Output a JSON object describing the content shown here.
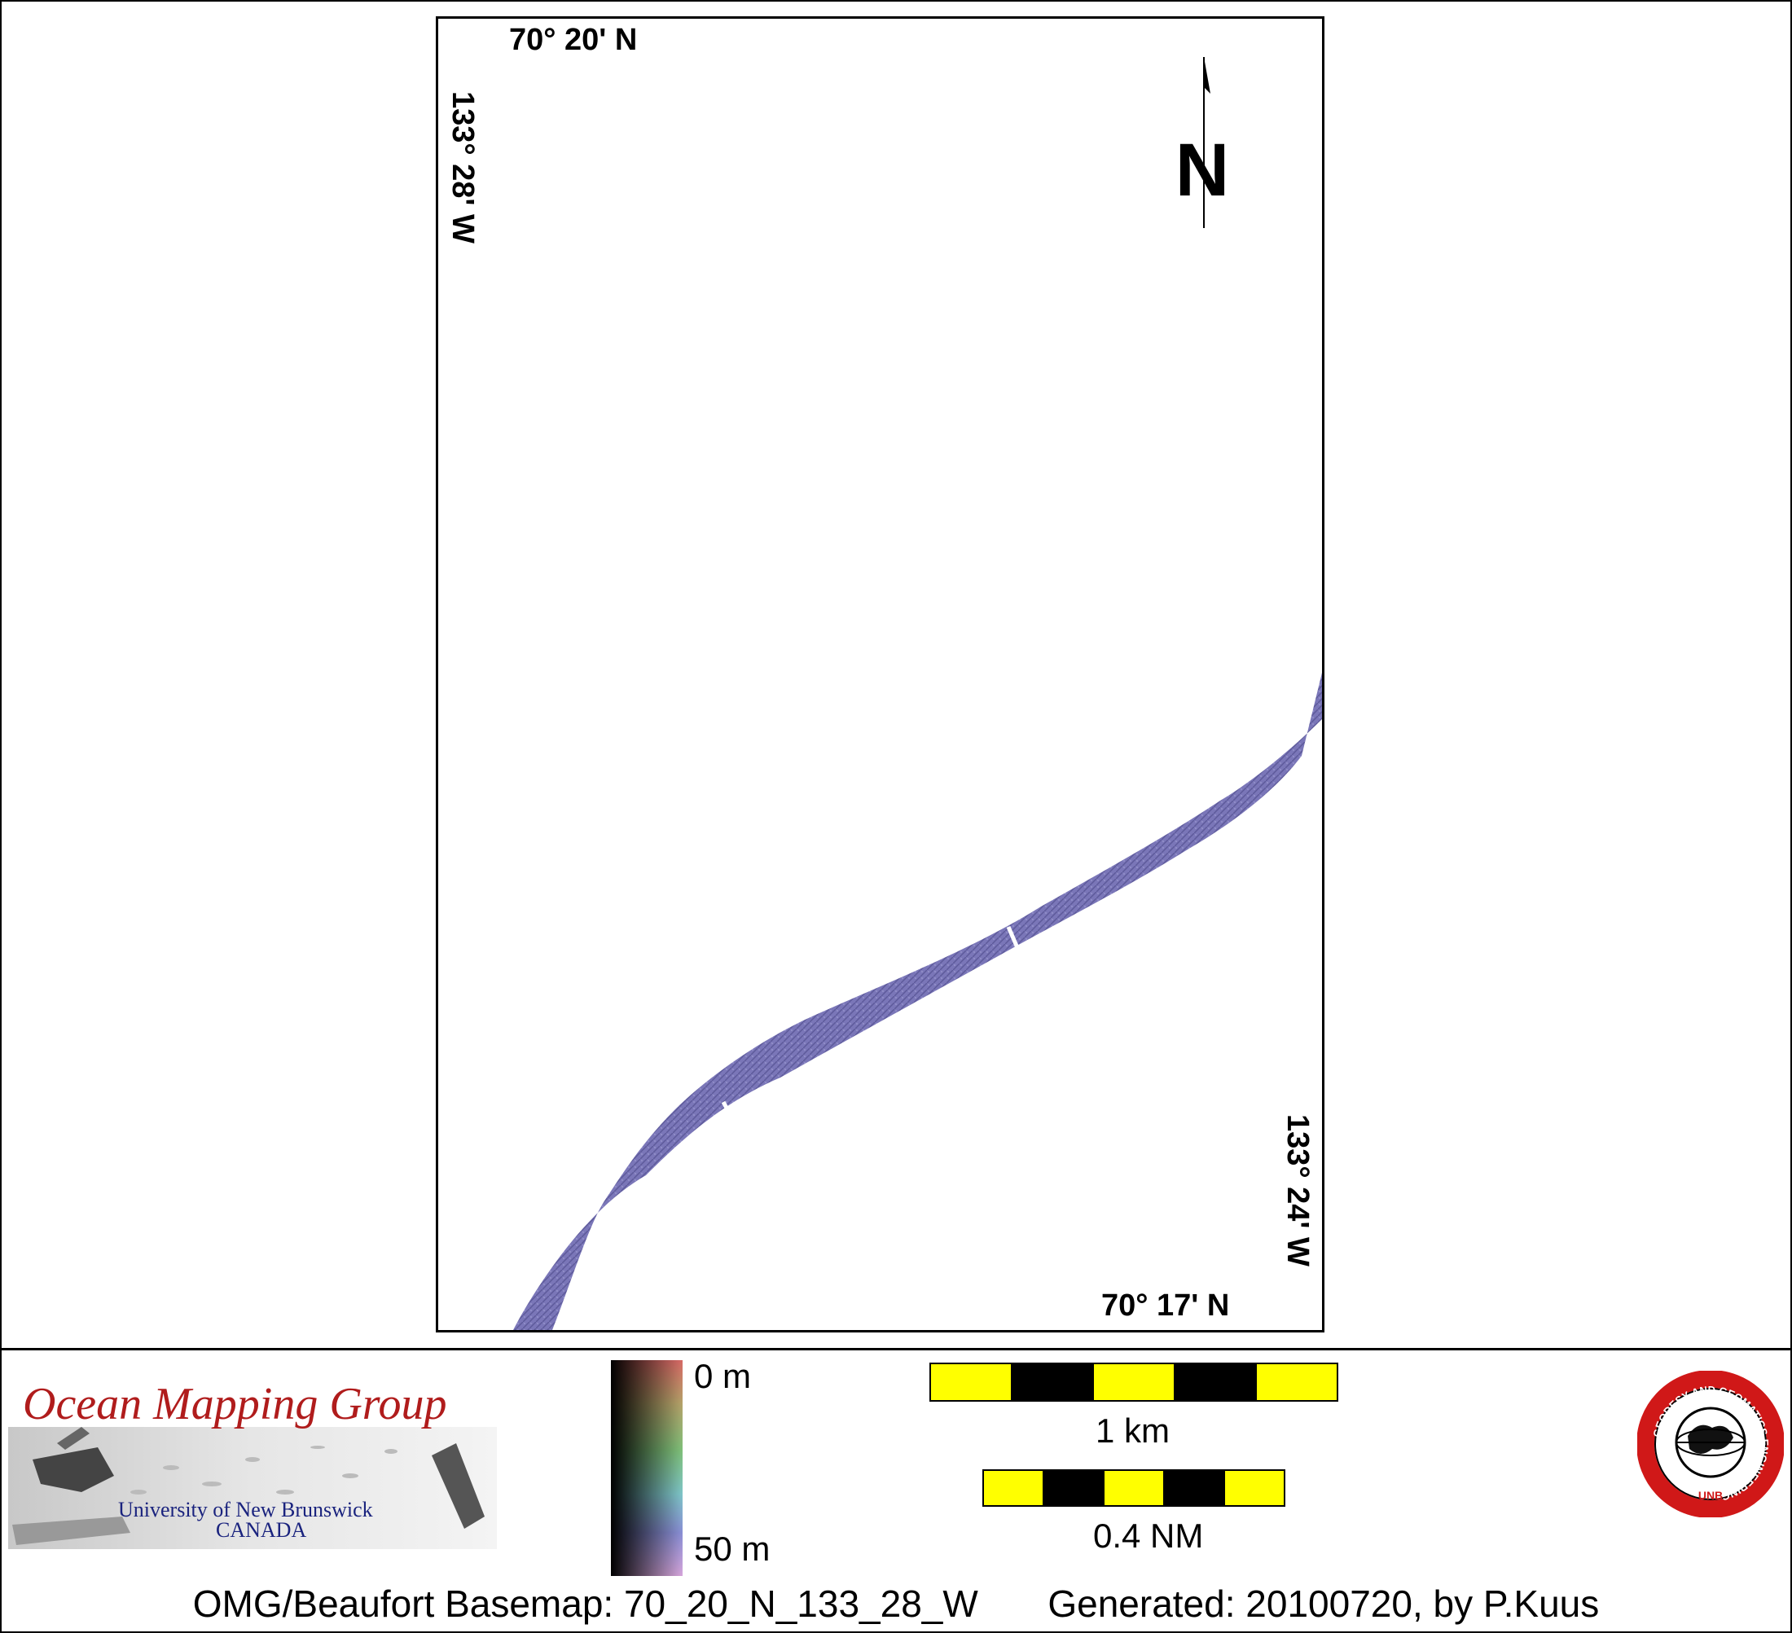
{
  "map": {
    "lat_top": "70° 20' N",
    "lat_bottom": "70° 17' N",
    "lon_left": "133° 28' W",
    "lon_right": "133° 24' W",
    "north_label": "N",
    "swath_color": "#7a76b8"
  },
  "legend": {
    "depth_top": "0 m",
    "depth_bottom": "50 m",
    "scale_km": "1 km",
    "scale_nm": "0.4 NM",
    "scale_colors": [
      "#ffff00",
      "#000000"
    ]
  },
  "logos": {
    "omg_title": "Ocean Mapping Group",
    "omg_line1": "University of New Brunswick",
    "omg_line2": "CANADA",
    "seal_ring_text": "GEODESY AND GEOMATICS ENGINEERING",
    "seal_bottom_text": "UNB"
  },
  "footer": {
    "basemap": "OMG/Beaufort Basemap: 70_20_N_133_28_W",
    "generated": "Generated: 20100720, by P.Kuus"
  }
}
